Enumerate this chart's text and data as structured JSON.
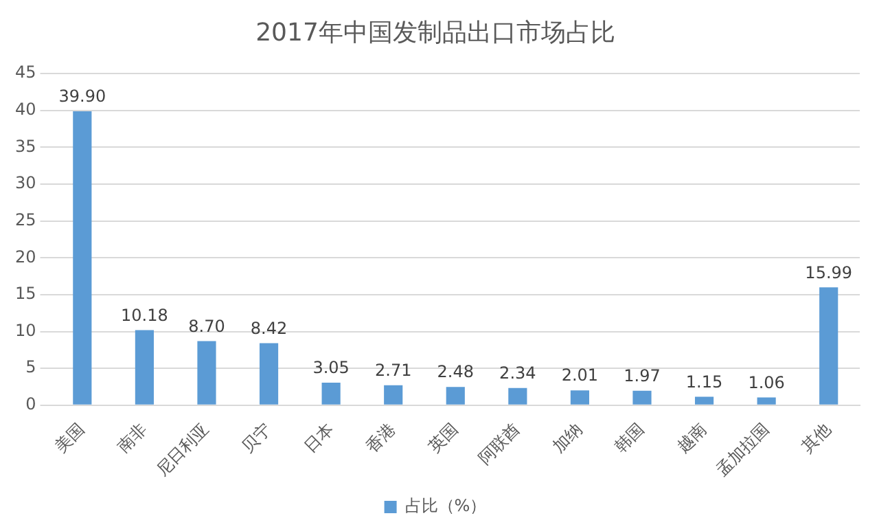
{
  "chart_data": {
    "type": "bar",
    "title": "2017年中国发制品出口市场占比",
    "categories": [
      "美国",
      "南非",
      "尼日利亚",
      "贝宁",
      "日本",
      "香港",
      "英国",
      "阿联酋",
      "加纳",
      "韩国",
      "越南",
      "孟加拉国",
      "其他"
    ],
    "series": [
      {
        "name": "占比（%）",
        "color": "#5b9bd5",
        "values": [
          39.9,
          10.18,
          8.7,
          8.42,
          3.05,
          2.71,
          2.48,
          2.34,
          2.01,
          1.97,
          1.15,
          1.06,
          15.99
        ],
        "value_labels": [
          "39.90",
          "10.18",
          "8.70",
          "8.42",
          "3.05",
          "2.71",
          "2.48",
          "2.34",
          "2.01",
          "1.97",
          "1.15",
          "1.06",
          "15.99"
        ]
      }
    ],
    "ylim": [
      0,
      45
    ],
    "yticks": [
      0,
      5,
      10,
      15,
      20,
      25,
      30,
      35,
      40,
      45
    ],
    "grid": "y",
    "legend": "bottom"
  }
}
